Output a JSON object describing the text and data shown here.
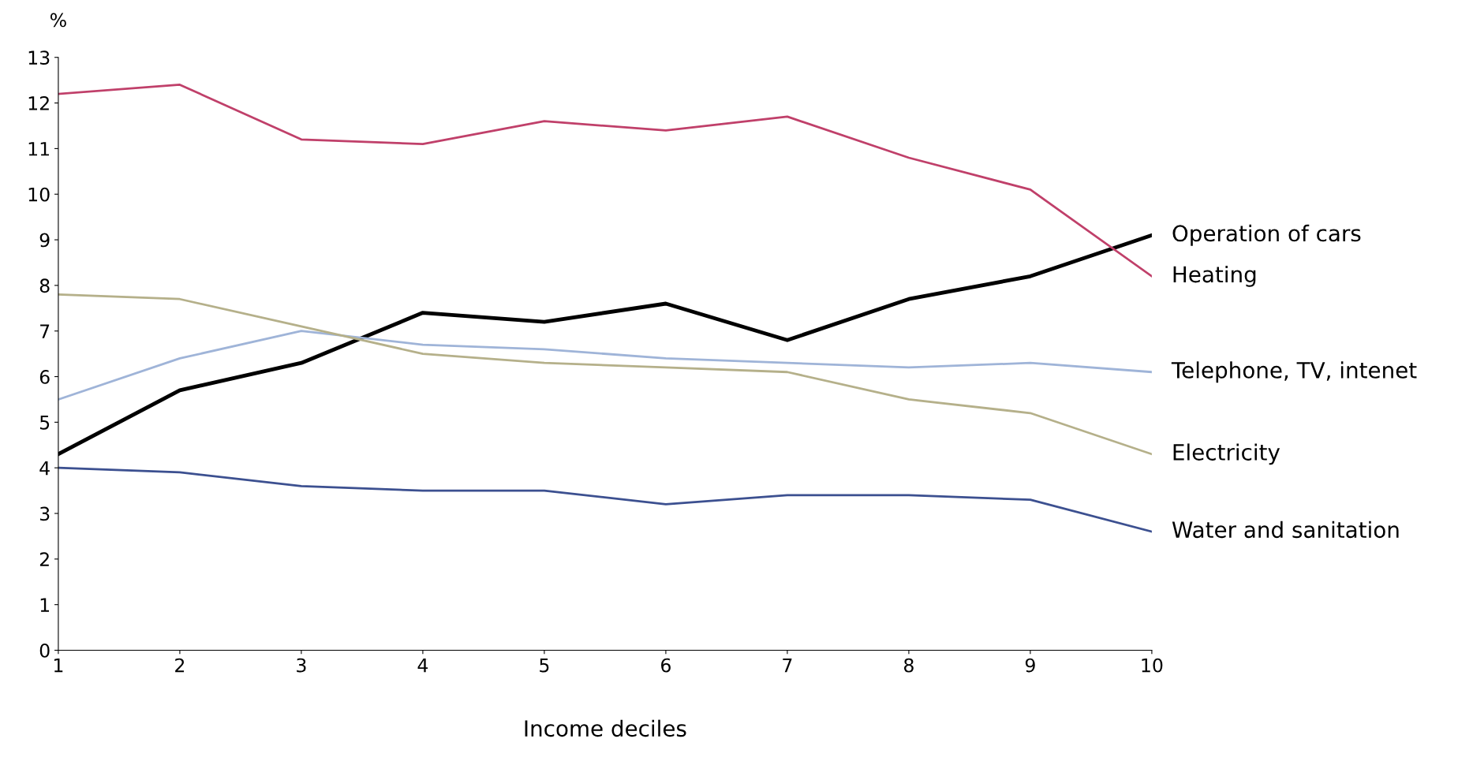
{
  "chart_data": {
    "type": "line",
    "ylabel": "%",
    "xlabel": "Income deciles",
    "x": [
      1,
      2,
      3,
      4,
      5,
      6,
      7,
      8,
      9,
      10
    ],
    "xlim": [
      1,
      10
    ],
    "xticks": [
      1,
      2,
      3,
      4,
      5,
      6,
      7,
      8,
      9,
      10
    ],
    "ylim": [
      0,
      13
    ],
    "yticks": [
      0,
      1,
      2,
      3,
      4,
      5,
      6,
      7,
      8,
      9,
      10,
      11,
      12,
      13
    ],
    "grid": false,
    "marker": "none",
    "line_style": "solid",
    "series": [
      {
        "name": "Operation of cars",
        "color": "#000000",
        "values": [
          4.3,
          5.7,
          6.3,
          7.4,
          7.2,
          7.6,
          6.8,
          7.7,
          8.2,
          9.1
        ]
      },
      {
        "name": "Heating",
        "color": "#c0406a",
        "values": [
          12.2,
          12.4,
          11.2,
          11.1,
          11.6,
          11.4,
          11.7,
          10.8,
          10.1,
          8.2
        ]
      },
      {
        "name": "Telephone, TV, intenet",
        "color": "#9fb4d8",
        "values": [
          5.5,
          6.4,
          7.0,
          6.7,
          6.6,
          6.4,
          6.3,
          6.2,
          6.3,
          6.1
        ]
      },
      {
        "name": "Electricity",
        "color": "#b5b08a",
        "values": [
          7.8,
          7.7,
          7.1,
          6.5,
          6.3,
          6.2,
          6.1,
          5.5,
          5.2,
          4.3
        ]
      },
      {
        "name": "Water and sanitation",
        "color": "#3c5090",
        "values": [
          4.0,
          3.9,
          3.6,
          3.5,
          3.5,
          3.2,
          3.4,
          3.4,
          3.3,
          2.6
        ]
      }
    ]
  }
}
